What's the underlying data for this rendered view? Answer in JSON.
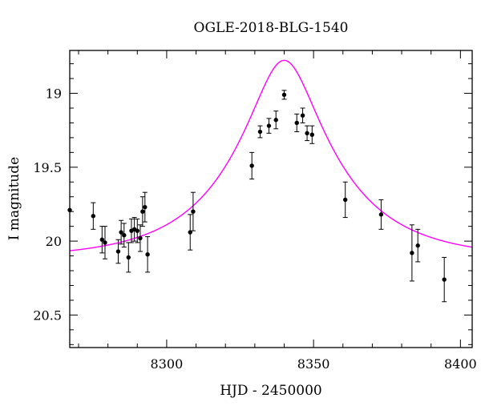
{
  "chart_data": {
    "type": "scatter",
    "title": "OGLE-2018-BLG-1540",
    "xlabel": "HJD - 2450000",
    "ylabel": "I magnitude",
    "xlim": [
      8267,
      8404
    ],
    "ylim": [
      20.72,
      18.71
    ],
    "y_inverted": true,
    "x_ticks": [
      8300,
      8350,
      8400
    ],
    "y_ticks": [
      19,
      19.5,
      20,
      20.5
    ],
    "x_tick_labels": [
      "8300",
      "8350",
      "8400"
    ],
    "y_tick_labels": [
      "19",
      "19.5",
      "20",
      "20.5"
    ],
    "grid": false,
    "legend": "none",
    "colors": {
      "points": "#000000",
      "model": "#ff00ff",
      "axes": "#000000"
    },
    "model": {
      "type": "Paczynski",
      "t0": 8340.0,
      "tE": 35,
      "u0": 0.3,
      "baseline_mag": 20.12,
      "label": ""
    },
    "points": [
      {
        "x": 8267.0,
        "y": 19.79,
        "err": 0.0
      },
      {
        "x": 8275.0,
        "y": 19.83,
        "err": 0.09
      },
      {
        "x": 8278.0,
        "y": 19.99,
        "err": 0.09
      },
      {
        "x": 8279.0,
        "y": 20.01,
        "err": 0.11
      },
      {
        "x": 8283.5,
        "y": 20.07,
        "err": 0.08
      },
      {
        "x": 8284.5,
        "y": 19.94,
        "err": 0.08
      },
      {
        "x": 8285.5,
        "y": 19.96,
        "err": 0.08
      },
      {
        "x": 8287.0,
        "y": 20.11,
        "err": 0.1
      },
      {
        "x": 8288.0,
        "y": 19.93,
        "err": 0.08
      },
      {
        "x": 8289.0,
        "y": 19.92,
        "err": 0.08
      },
      {
        "x": 8290.0,
        "y": 19.93,
        "err": 0.08
      },
      {
        "x": 8291.0,
        "y": 19.98,
        "err": 0.09
      },
      {
        "x": 8291.8,
        "y": 19.8,
        "err": 0.1
      },
      {
        "x": 8292.6,
        "y": 19.77,
        "err": 0.1
      },
      {
        "x": 8293.5,
        "y": 20.09,
        "err": 0.12
      },
      {
        "x": 8308.0,
        "y": 19.94,
        "err": 0.12
      },
      {
        "x": 8309.0,
        "y": 19.8,
        "err": 0.13
      },
      {
        "x": 8329.0,
        "y": 19.49,
        "err": 0.09
      },
      {
        "x": 8331.8,
        "y": 19.26,
        "err": 0.04
      },
      {
        "x": 8334.8,
        "y": 19.22,
        "err": 0.05
      },
      {
        "x": 8337.2,
        "y": 19.18,
        "err": 0.06
      },
      {
        "x": 8340.0,
        "y": 19.01,
        "err": 0.03
      },
      {
        "x": 8344.3,
        "y": 19.2,
        "err": 0.06
      },
      {
        "x": 8346.3,
        "y": 19.15,
        "err": 0.05
      },
      {
        "x": 8347.8,
        "y": 19.27,
        "err": 0.05
      },
      {
        "x": 8349.5,
        "y": 19.28,
        "err": 0.06
      },
      {
        "x": 8360.8,
        "y": 19.72,
        "err": 0.12
      },
      {
        "x": 8373.0,
        "y": 19.82,
        "err": 0.1
      },
      {
        "x": 8383.5,
        "y": 20.08,
        "err": 0.19
      },
      {
        "x": 8385.5,
        "y": 20.03,
        "err": 0.11
      },
      {
        "x": 8394.5,
        "y": 20.26,
        "err": 0.15
      }
    ]
  }
}
